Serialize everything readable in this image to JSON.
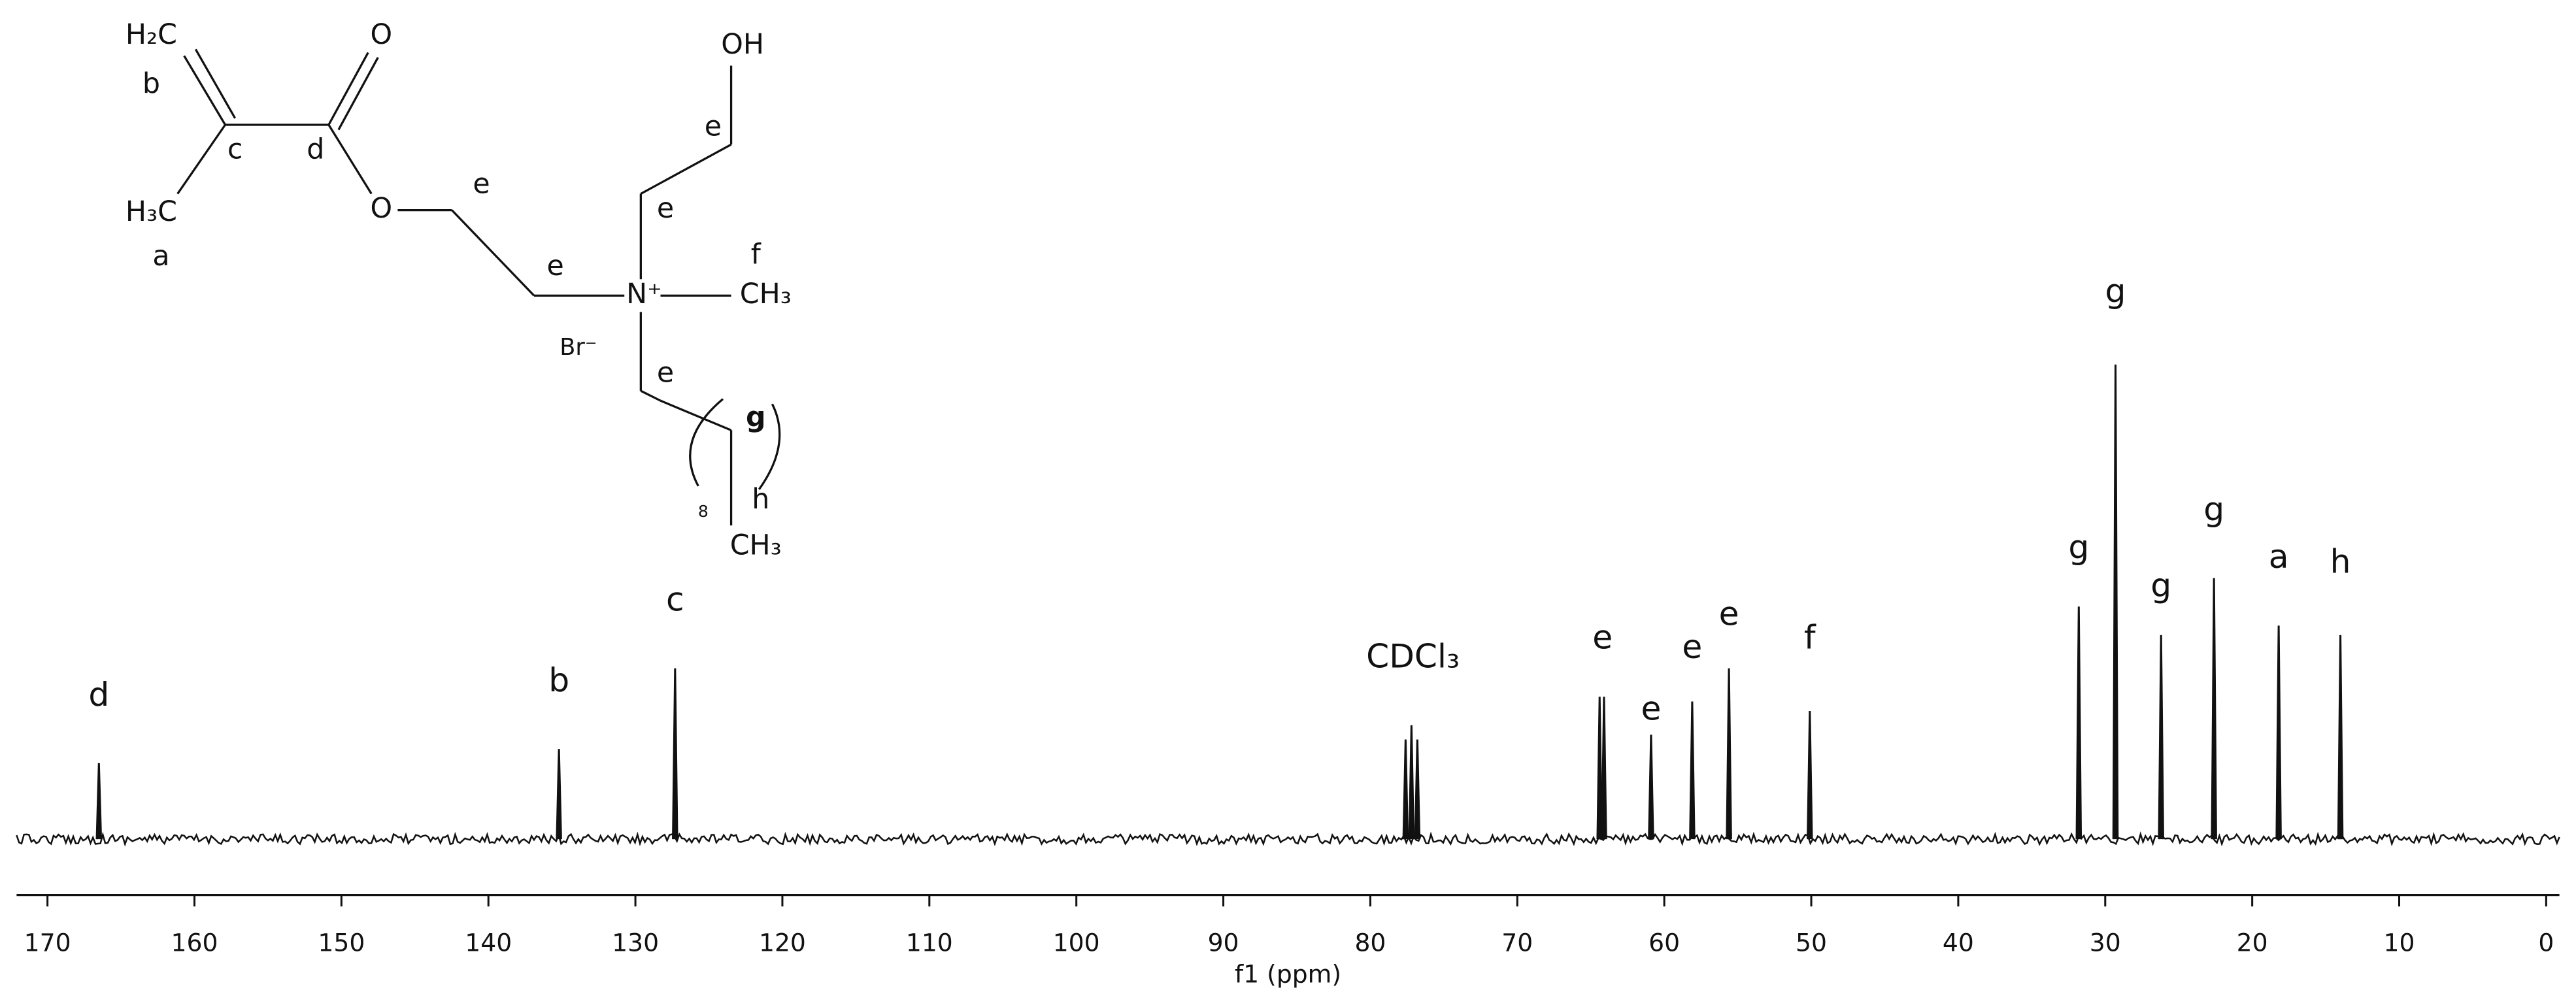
{
  "structure": {
    "labels": [
      "H₂C",
      "b",
      "O",
      "c",
      "d",
      "H₃C",
      "a",
      "O",
      "e",
      "e",
      "N⁺",
      "f",
      "CH₃",
      "Br⁻",
      "e",
      "e",
      "OH",
      "e",
      "g",
      "h",
      "8",
      "CH₃"
    ]
  },
  "chart_data": {
    "type": "spectrum",
    "xlabel": "f1 (ppm)",
    "color": "#111111",
    "xlim": [
      172.1,
      -0.9
    ],
    "xticks": [
      170,
      160,
      150,
      140,
      130,
      120,
      110,
      100,
      90,
      80,
      70,
      60,
      50,
      40,
      30,
      20,
      10,
      0
    ],
    "ylim": [
      -5,
      125
    ],
    "x": [
      166.5,
      135.2,
      127.3,
      77.6,
      77.2,
      76.8,
      64.4,
      64.1,
      60.9,
      58.1,
      55.6,
      50.1,
      31.8,
      29.3,
      26.2,
      22.6,
      18.2,
      14.0
    ],
    "values": [
      16,
      19,
      36,
      21,
      24,
      21,
      30,
      30,
      22,
      29,
      36,
      27,
      49,
      100,
      43,
      55,
      45,
      43
    ],
    "annotations": [
      {
        "text": "d",
        "x": 166.5,
        "y": 30
      },
      {
        "text": "b",
        "x": 135.2,
        "y": 33
      },
      {
        "text": "c",
        "x": 127.3,
        "y": 50
      },
      {
        "text": "CDCl₃",
        "x": 77.1,
        "y": 38
      },
      {
        "text": "e",
        "x": 64.2,
        "y": 42
      },
      {
        "text": "e",
        "x": 60.9,
        "y": 27
      },
      {
        "text": "e",
        "x": 58.1,
        "y": 40
      },
      {
        "text": "e",
        "x": 55.6,
        "y": 47
      },
      {
        "text": "f",
        "x": 50.1,
        "y": 42
      },
      {
        "text": "g",
        "x": 31.8,
        "y": 61
      },
      {
        "text": "g",
        "x": 29.3,
        "y": 115
      },
      {
        "text": "g",
        "x": 26.2,
        "y": 53
      },
      {
        "text": "g",
        "x": 22.6,
        "y": 69
      },
      {
        "text": "a",
        "x": 18.2,
        "y": 59
      },
      {
        "text": "h",
        "x": 14.0,
        "y": 58
      }
    ]
  }
}
